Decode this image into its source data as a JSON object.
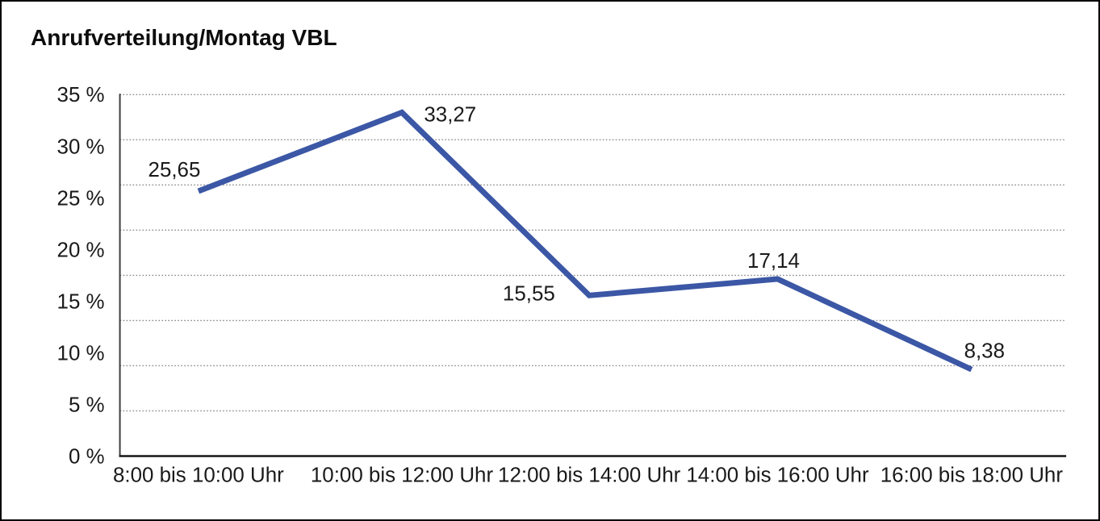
{
  "chart_data": {
    "type": "line",
    "title": "Anrufverteilung/Montag VBL",
    "categories": [
      "8:00 bis 10:00 Uhr",
      "10:00 bis 12:00 Uhr",
      "12:00 bis 14:00 Uhr",
      "14:00 bis 16:00 Uhr",
      "16:00 bis 18:00 Uhr"
    ],
    "series": [
      {
        "name": "Anrufverteilung Montag VBL",
        "values": [
          25.65,
          33.27,
          15.55,
          17.14,
          8.38
        ],
        "point_labels": [
          "25,65",
          "33,27",
          "15,55",
          "17,14",
          "8,38"
        ]
      }
    ],
    "xlabel": "",
    "ylabel": "",
    "y_axis": {
      "min": 0,
      "max": 35,
      "tick_step": 5,
      "tick_labels": [
        "0 %",
        "5 %",
        "10 %",
        "15 %",
        "20 %",
        "25 %",
        "30 %",
        "35 %"
      ]
    },
    "ylim": [
      0,
      35
    ],
    "grid": "dotted-horizontal",
    "grid_divisions": 8,
    "legend": "none",
    "line_color": "#3B57A5",
    "background_color": "#ffffff",
    "border_color": "#000000"
  }
}
